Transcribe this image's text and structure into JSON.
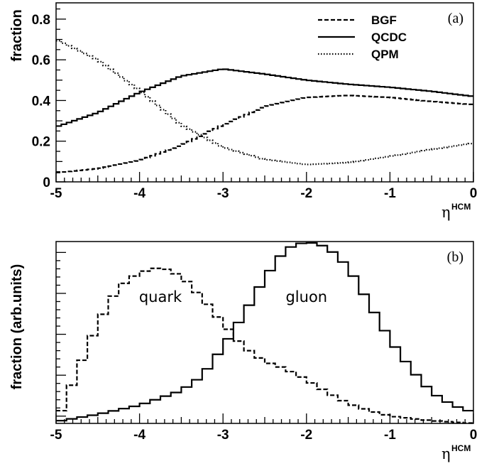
{
  "chart_data": [
    {
      "type": "line",
      "panel_tag": "(a)",
      "ylabel": "fraction",
      "xlabel_symbol": "η",
      "xlabel_superscript": "HCM",
      "xlim": [
        -5,
        0
      ],
      "ylim": [
        0,
        0.88
      ],
      "x_ticks": [
        "-5",
        "-4",
        "-3",
        "-2",
        "-1",
        "0"
      ],
      "y_ticks": [
        "0",
        "0.2",
        "0.4",
        "0.6",
        "0.8"
      ],
      "legend_position": "top-right",
      "series": [
        {
          "name": "BGF",
          "style": "dashed",
          "x": [
            -5,
            -4.5,
            -4,
            -3.5,
            -3,
            -2.5,
            -2,
            -1.5,
            -1,
            -0.5,
            0
          ],
          "y": [
            0.045,
            0.065,
            0.105,
            0.18,
            0.28,
            0.37,
            0.415,
            0.425,
            0.415,
            0.395,
            0.38
          ]
        },
        {
          "name": "QCDC",
          "style": "solid",
          "x": [
            -5,
            -4.5,
            -4,
            -3.5,
            -3,
            -2.5,
            -2,
            -1.5,
            -1,
            -0.5,
            0
          ],
          "y": [
            0.27,
            0.34,
            0.44,
            0.52,
            0.555,
            0.53,
            0.5,
            0.48,
            0.465,
            0.445,
            0.42
          ]
        },
        {
          "name": "QPM",
          "style": "dotted",
          "x": [
            -5,
            -4.5,
            -4,
            -3.5,
            -3,
            -2.5,
            -2,
            -1.5,
            -1,
            -0.5,
            0
          ],
          "y": [
            0.7,
            0.6,
            0.45,
            0.28,
            0.17,
            0.11,
            0.085,
            0.095,
            0.125,
            0.16,
            0.19
          ]
        }
      ]
    },
    {
      "type": "line",
      "panel_tag": "(b)",
      "ylabel": "fraction (arb.units)",
      "xlabel_symbol": "η",
      "xlabel_superscript": "HCM",
      "xlim": [
        -5,
        0
      ],
      "ylim": [
        0,
        1.0
      ],
      "x_ticks": [
        "-5",
        "-4",
        "-3",
        "-2",
        "-1",
        "0"
      ],
      "annotations": [
        {
          "text": "quark",
          "x": -3.75,
          "y": 0.55
        },
        {
          "text": "gluon",
          "x": -2.0,
          "y": 0.55
        }
      ],
      "series": [
        {
          "name": "quark",
          "style": "dashed",
          "x": [
            -5,
            -4.75,
            -4.5,
            -4.25,
            -4,
            -3.75,
            -3.5,
            -3.25,
            -3,
            -2.75,
            -2.5,
            -2.25,
            -2,
            -1.75,
            -1.5,
            -1.25,
            -1,
            -0.5,
            0
          ],
          "y": [
            0.0,
            0.28,
            0.55,
            0.75,
            0.83,
            0.86,
            0.81,
            0.69,
            0.55,
            0.42,
            0.34,
            0.3,
            0.24,
            0.17,
            0.11,
            0.07,
            0.04,
            0.015,
            0.0
          ]
        },
        {
          "name": "gluon",
          "style": "solid",
          "x": [
            -5,
            -4.5,
            -4,
            -3.5,
            -3.25,
            -3,
            -2.75,
            -2.5,
            -2.25,
            -2,
            -1.75,
            -1.5,
            -1.25,
            -1,
            -0.75,
            -0.5,
            -0.25,
            0
          ],
          "y": [
            0.01,
            0.05,
            0.1,
            0.18,
            0.26,
            0.42,
            0.6,
            0.8,
            0.96,
            1.0,
            0.97,
            0.86,
            0.66,
            0.46,
            0.3,
            0.17,
            0.1,
            0.06
          ]
        }
      ]
    }
  ]
}
